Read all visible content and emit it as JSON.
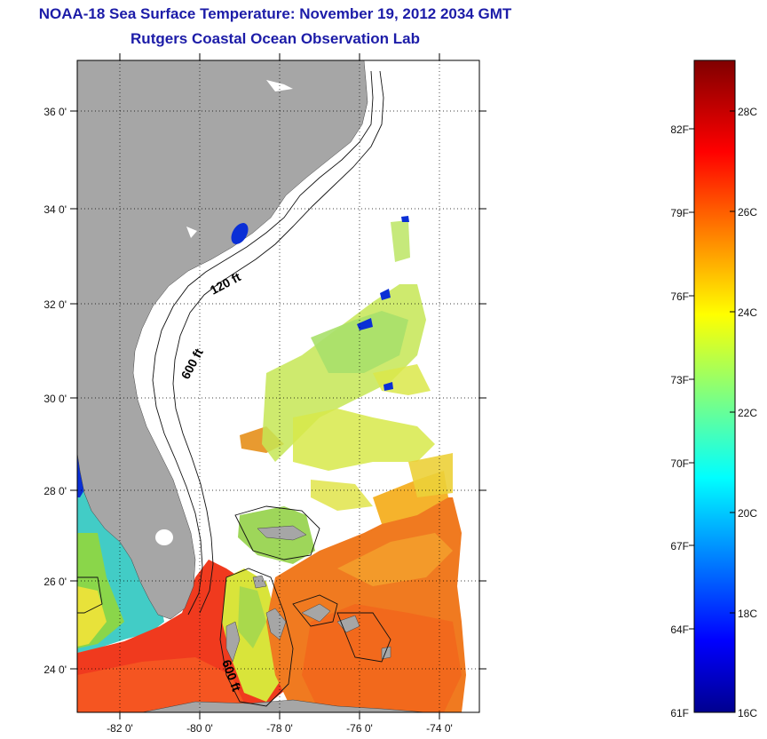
{
  "header": {
    "title": "NOAA-18 Sea Surface Temperature:  November 19, 2012 2034 GMT",
    "subtitle": "Rutgers Coastal Ocean Observation Lab"
  },
  "map": {
    "lat_labels": [
      "36 0'",
      "34 0'",
      "32 0'",
      "30 0'",
      "28 0'",
      "26 0'",
      "24 0'"
    ],
    "lon_labels": [
      "-82 0'",
      "-80 0'",
      "-78 0'",
      "-76 0'",
      "-74 0'"
    ],
    "contour_labels": [
      "120 ft",
      "600 ft",
      "600 ft"
    ],
    "colors": {
      "land": "#a6a6a6",
      "background": "#ffffff",
      "grid": "#000000"
    }
  },
  "colorbar": {
    "fahrenheit_labels": [
      "82F",
      "79F",
      "76F",
      "73F",
      "70F",
      "67F",
      "64F",
      "61F"
    ],
    "celsius_labels": [
      "28C",
      "26C",
      "24C",
      "22C",
      "20C",
      "18C",
      "16C"
    ],
    "colormap": "jet",
    "min_c": 16,
    "max_c": 29
  }
}
